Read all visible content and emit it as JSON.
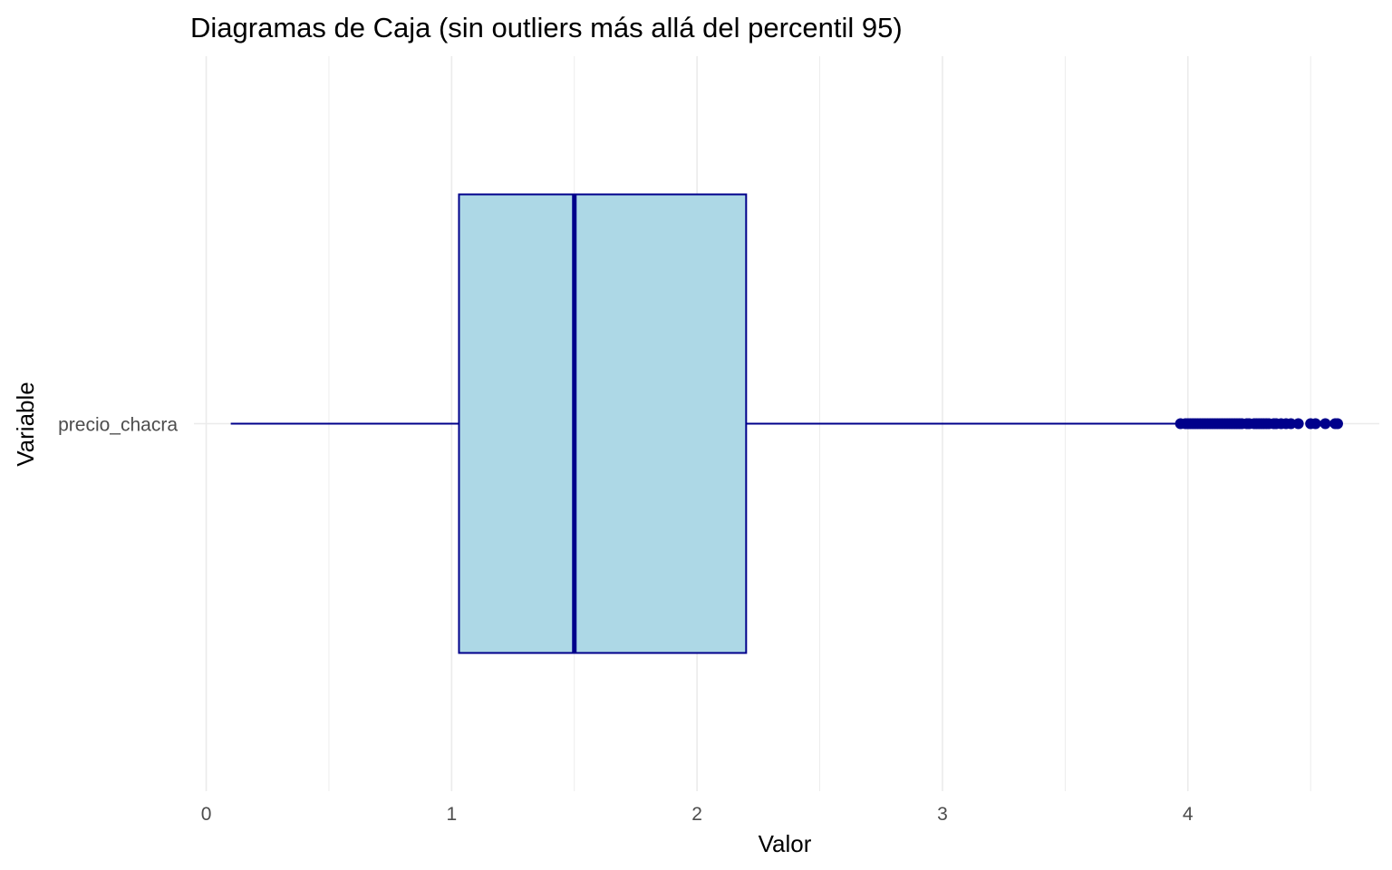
{
  "chart_data": {
    "type": "boxplot",
    "orientation": "horizontal",
    "title": "Diagramas de Caja (sin outliers más allá del percentil 95)",
    "xlabel": "Valor",
    "ylabel": "Variable",
    "xlim": [
      -0.05,
      4.78
    ],
    "x_ticks": [
      0,
      1,
      2,
      3,
      4
    ],
    "x_tick_labels": [
      "0",
      "1",
      "2",
      "3",
      "4"
    ],
    "grid": true,
    "categories": [
      "precio_chacra"
    ],
    "boxes": [
      {
        "category": "precio_chacra",
        "whisker_low": 0.1,
        "q1": 1.03,
        "median": 1.5,
        "q3": 2.2,
        "whisker_high": 3.95,
        "outliers": [
          3.97,
          3.99,
          4.0,
          4.01,
          4.02,
          4.03,
          4.04,
          4.05,
          4.06,
          4.07,
          4.08,
          4.09,
          4.1,
          4.11,
          4.12,
          4.13,
          4.14,
          4.15,
          4.16,
          4.17,
          4.18,
          4.19,
          4.2,
          4.21,
          4.22,
          4.24,
          4.25,
          4.27,
          4.28,
          4.29,
          4.3,
          4.31,
          4.32,
          4.33,
          4.35,
          4.36,
          4.38,
          4.4,
          4.42,
          4.45,
          4.5,
          4.52,
          4.56,
          4.6,
          4.61
        ]
      }
    ],
    "colors": {
      "box_fill": "#add8e6",
      "box_outline": "#00008b",
      "median": "#00008b",
      "outlier": "#00008b",
      "grid": "#ebebeb"
    }
  }
}
